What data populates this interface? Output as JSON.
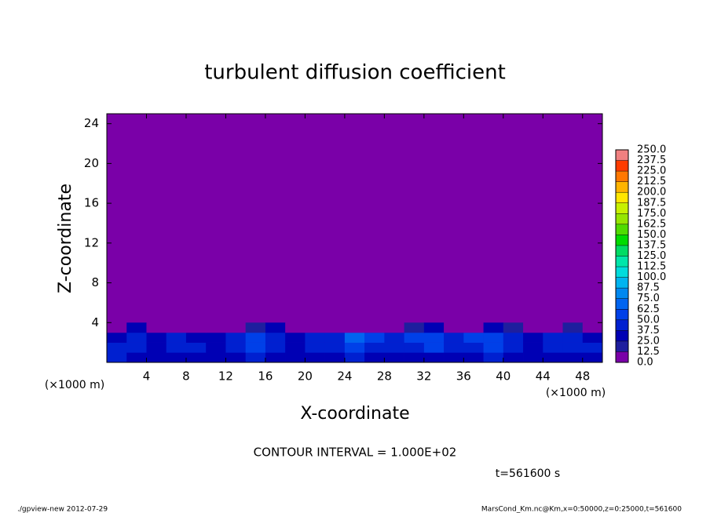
{
  "chart_data": {
    "type": "contour",
    "title": "turbulent diffusion coefficient",
    "xlabel": "X-coordinate",
    "ylabel": "Z-coordinate",
    "xunit": "(×1000 m)",
    "yunit": "(×1000 m)",
    "xlim": [
      0,
      50
    ],
    "ylim": [
      0,
      25
    ],
    "xticks": [
      4,
      8,
      12,
      16,
      20,
      24,
      28,
      32,
      36,
      40,
      44,
      48
    ],
    "yticks": [
      4,
      8,
      12,
      16,
      20,
      24
    ],
    "x": [
      1,
      3,
      5,
      7,
      9,
      11,
      13,
      15,
      17,
      19,
      21,
      23,
      25,
      27,
      29,
      31,
      33,
      35,
      37,
      39,
      41,
      43,
      45,
      47,
      49
    ],
    "z": [
      0.5,
      1.5,
      2.5,
      3.5
    ],
    "values": [
      [
        40,
        35,
        30,
        35,
        30,
        30,
        35,
        40,
        30,
        30,
        30,
        35,
        45,
        35,
        30,
        30,
        35,
        30,
        35,
        40,
        35,
        30,
        30,
        35,
        30
      ],
      [
        45,
        40,
        35,
        40,
        40,
        35,
        45,
        50,
        40,
        35,
        45,
        40,
        60,
        45,
        40,
        45,
        50,
        40,
        45,
        50,
        45,
        35,
        40,
        45,
        40
      ],
      [
        35,
        40,
        30,
        45,
        35,
        30,
        40,
        55,
        45,
        30,
        40,
        45,
        70,
        55,
        45,
        50,
        55,
        45,
        50,
        55,
        45,
        35,
        40,
        40,
        35
      ],
      [
        0,
        25,
        0,
        0,
        0,
        0,
        0,
        20,
        25,
        0,
        0,
        0,
        0,
        0,
        0,
        20,
        25,
        0,
        0,
        25,
        20,
        0,
        0,
        20,
        0
      ]
    ],
    "levels": [
      {
        "value": 0,
        "label": "0.0"
      },
      12.5,
      {
        "value": 25,
        "label": "25.0"
      },
      37.5,
      {
        "value": 50,
        "label": "50.0"
      },
      62.5,
      {
        "value": 75,
        "label": "75.0"
      },
      87.5,
      {
        "value": 100,
        "label": "100.0"
      },
      112.5,
      {
        "value": 125,
        "label": "125.0"
      },
      137.5,
      {
        "value": 150,
        "label": "150.0"
      },
      162.5,
      {
        "value": 175,
        "label": "175.0"
      },
      187.5,
      {
        "value": 200,
        "label": "200.0"
      },
      212.5,
      {
        "value": 225,
        "label": "225.0"
      },
      237.5,
      {
        "value": 250,
        "label": "250.0"
      }
    ],
    "colors": [
      "#7a00a8",
      "#1e1e9e",
      "#0000b4",
      "#0020d0",
      "#0040e8",
      "#0064f0",
      "#0088f0",
      "#00b4f0",
      "#00dcdc",
      "#00e6aa",
      "#00dc64",
      "#00dc00",
      "#50dc00",
      "#96e600",
      "#c8f000",
      "#ffe600",
      "#ffb400",
      "#ff7800",
      "#ff3c00",
      "#f08080"
    ],
    "contour_interval": "CONTOUR INTERVAL = 1.000E+02",
    "time_label": "t=561600 s",
    "footer_left": "./gpview-new   2012-07-29",
    "footer_right": "MarsCond_Km.nc@Km,x=0:50000,z=0:25000,t=561600"
  }
}
